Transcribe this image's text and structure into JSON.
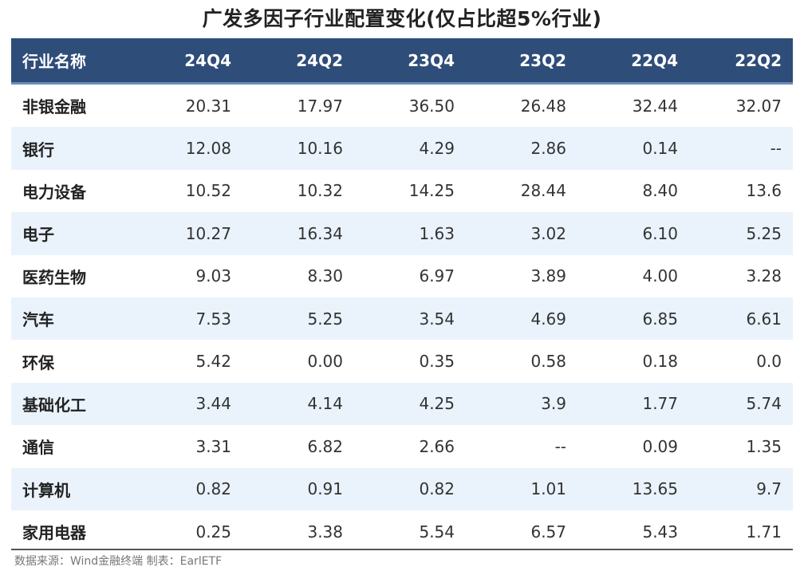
{
  "chart_data": {
    "type": "table",
    "title": "广发多因子行业配置变化(仅占比超5%行业)",
    "columns": [
      "行业名称",
      "24Q4",
      "24Q2",
      "23Q4",
      "23Q2",
      "22Q4",
      "22Q2"
    ],
    "rows": [
      [
        "非银金融",
        "20.31",
        "17.97",
        "36.50",
        "26.48",
        "32.44",
        "32.07"
      ],
      [
        "银行",
        "12.08",
        "10.16",
        "4.29",
        "2.86",
        "0.14",
        "--"
      ],
      [
        "电力设备",
        "10.52",
        "10.32",
        "14.25",
        "28.44",
        "8.40",
        "13.6"
      ],
      [
        "电子",
        "10.27",
        "16.34",
        "1.63",
        "3.02",
        "6.10",
        "5.25"
      ],
      [
        "医药生物",
        "9.03",
        "8.30",
        "6.97",
        "3.89",
        "4.00",
        "3.28"
      ],
      [
        "汽车",
        "7.53",
        "5.25",
        "3.54",
        "4.69",
        "6.85",
        "6.61"
      ],
      [
        "环保",
        "5.42",
        "0.00",
        "0.35",
        "0.58",
        "0.18",
        "0.0"
      ],
      [
        "基础化工",
        "3.44",
        "4.14",
        "4.25",
        "3.9",
        "1.77",
        "5.74"
      ],
      [
        "通信",
        "3.31",
        "6.82",
        "2.66",
        "--",
        "0.09",
        "1.35"
      ],
      [
        "计算机",
        "0.82",
        "0.91",
        "0.82",
        "1.01",
        "13.65",
        "9.7"
      ],
      [
        "家用电器",
        "0.25",
        "3.38",
        "5.54",
        "6.57",
        "5.43",
        "1.71"
      ]
    ],
    "source_note": "数据来源：Wind金融终端 制表：EarlETF",
    "colors": {
      "header_bg": "#2f4d79",
      "header_text": "#ffffff",
      "alt_row_bg": "#eaf3fc"
    }
  }
}
